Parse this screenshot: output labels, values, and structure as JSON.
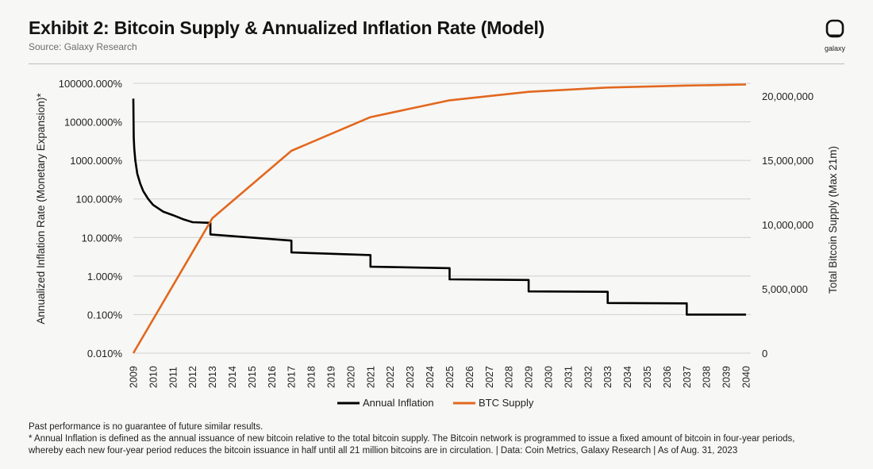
{
  "header": {
    "title": "Exhibit 2: Bitcoin Supply & Annualized Inflation Rate (Model)",
    "source": "Source: Galaxy Research",
    "logo_label": "galaxy",
    "logo_icon": "galaxy-logo-icon"
  },
  "footnotes": {
    "line1": "Past performance is no guarantee of future similar results.",
    "line2": "* Annual Inflation is defined as the annual issuance of new bitcoin relative to the total bitcoin supply. The Bitcoin network is programmed to issue a fixed amount of bitcoin in four-year periods,",
    "line3": "whereby each new four-year period reduces the bitcoin issuance in half until all 21 million bitcoins are in circulation.  |  Data: Coin Metrics, Galaxy Research  |  As of Aug. 31, 2023"
  },
  "chart_data": {
    "type": "line",
    "title": "Exhibit 2: Bitcoin Supply & Annualized Inflation Rate (Model)",
    "colors": {
      "inflation": "#000000",
      "supply": "#e2681e",
      "grid": "#d0d0d0",
      "text": "#222222"
    },
    "x_categories": [
      "2009",
      "2010",
      "2011",
      "2012",
      "2013",
      "2014",
      "2015",
      "2016",
      "2017",
      "2018",
      "2019",
      "2020",
      "2021",
      "2022",
      "2023",
      "2024",
      "2025",
      "2026",
      "2027",
      "2028",
      "2029",
      "2030",
      "2031",
      "2032",
      "2033",
      "2034",
      "2035",
      "2036",
      "2037",
      "2038",
      "2039",
      "2040"
    ],
    "y_left": {
      "label": "Annualized Inflation Rate (Monetary Expansion)*",
      "scale": "log",
      "range": [
        0.01,
        100000
      ],
      "ticks": [
        {
          "value": 100000,
          "label": "100000.000%"
        },
        {
          "value": 10000,
          "label": "10000.000%"
        },
        {
          "value": 1000,
          "label": "1000.000%"
        },
        {
          "value": 100,
          "label": "100.000%"
        },
        {
          "value": 10,
          "label": "10.000%"
        },
        {
          "value": 1,
          "label": "1.000%"
        },
        {
          "value": 0.1,
          "label": "0.100%"
        },
        {
          "value": 0.01,
          "label": "0.010%"
        }
      ]
    },
    "y_right": {
      "label": "Total Bitcoin Supply (Max 21m)",
      "scale": "linear",
      "range": [
        0,
        21000000
      ],
      "ticks": [
        {
          "value": 20000000,
          "label": "20,000,000"
        },
        {
          "value": 15000000,
          "label": "15,000,000"
        },
        {
          "value": 10000000,
          "label": "10,000,000"
        },
        {
          "value": 5000000,
          "label": "5,000,000"
        },
        {
          "value": 0,
          "label": "0"
        }
      ]
    },
    "series": [
      {
        "name": "Annual Inflation",
        "axis": "left",
        "style": "step",
        "points": [
          [
            0,
            40000
          ],
          [
            0.02,
            4000
          ],
          [
            0.05,
            2000
          ],
          [
            0.1,
            1000
          ],
          [
            0.2,
            450
          ],
          [
            0.35,
            250
          ],
          [
            0.5,
            160
          ],
          [
            0.75,
            100
          ],
          [
            1.0,
            70
          ],
          [
            1.5,
            47
          ],
          [
            2.0,
            38
          ],
          [
            2.5,
            30
          ],
          [
            3.0,
            25
          ],
          [
            3.9,
            24
          ],
          [
            3.9,
            12
          ],
          [
            8.0,
            8.3
          ],
          [
            8.0,
            4.1
          ],
          [
            12.0,
            3.5
          ],
          [
            12.0,
            1.75
          ],
          [
            16.0,
            1.6
          ],
          [
            16.0,
            0.82
          ],
          [
            20.0,
            0.79
          ],
          [
            20.0,
            0.4
          ],
          [
            24.0,
            0.39
          ],
          [
            24.0,
            0.2
          ],
          [
            28.0,
            0.195
          ],
          [
            28.0,
            0.1
          ],
          [
            31.0,
            0.1
          ]
        ]
      },
      {
        "name": "BTC Supply",
        "axis": "right",
        "style": "line",
        "points": [
          [
            0,
            0
          ],
          [
            4,
            10500000
          ],
          [
            8,
            15750000
          ],
          [
            12,
            18370000
          ],
          [
            16,
            19680000
          ],
          [
            20,
            20340000
          ],
          [
            24,
            20670000
          ],
          [
            28,
            20830000
          ],
          [
            31,
            20910000
          ]
        ]
      }
    ],
    "legend": [
      {
        "label": "Annual Inflation",
        "color": "#000000"
      },
      {
        "label": "BTC Supply",
        "color": "#e2681e"
      }
    ],
    "legend_position": "bottom-center",
    "grid": "horizontal"
  }
}
